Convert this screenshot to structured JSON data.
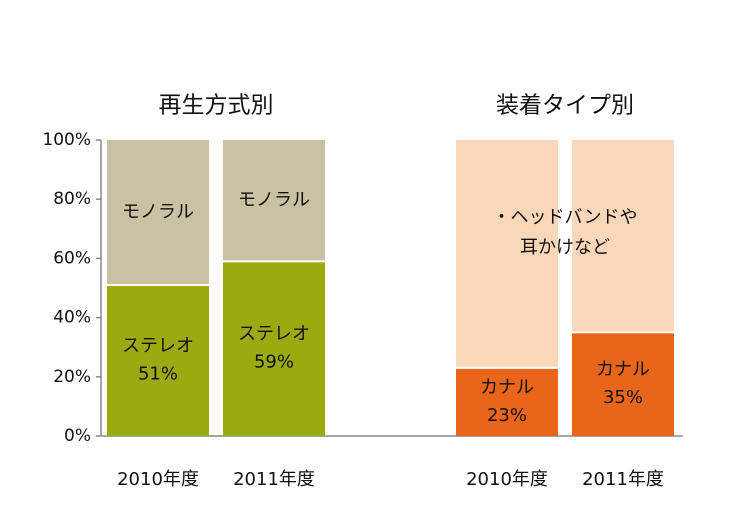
{
  "chart_data": {
    "type": "bar",
    "stacked": true,
    "ylim": [
      0,
      100
    ],
    "yticks": [
      "0%",
      "20%",
      "40%",
      "60%",
      "80%",
      "100%"
    ],
    "ytick_values": [
      0,
      20,
      40,
      60,
      80,
      100
    ],
    "grid": false,
    "groups": [
      {
        "title": "再生方式別",
        "categories": [
          "2010年度",
          "2011年度"
        ],
        "series": [
          {
            "name": "ステレオ",
            "values": [
              51,
              59
            ],
            "color": "#9aaa10",
            "labels": [
              [
                "ステレオ",
                "51%"
              ],
              [
                "ステレオ",
                "59%"
              ]
            ]
          },
          {
            "name": "モノラル",
            "values": [
              49,
              41
            ],
            "color": "#c8c2a2",
            "labels": [
              [
                "モノラル"
              ],
              [
                "モノラル"
              ]
            ]
          }
        ]
      },
      {
        "title": "装着タイプ別",
        "categories": [
          "2010年度",
          "2011年度"
        ],
        "series": [
          {
            "name": "カナル",
            "values": [
              23,
              35
            ],
            "color": "#e8651a",
            "labels": [
              [
                "カナル",
                "23%"
              ],
              [
                "カナル",
                "35%"
              ]
            ]
          },
          {
            "name": "・ヘッドバンドや耳かけなど",
            "values": [
              77,
              65
            ],
            "color": "#fbd7b9",
            "spanning_label": [
              "・ヘッドバンドや",
              "耳かけなど"
            ]
          }
        ]
      }
    ],
    "colors": {
      "axis": "#888888",
      "text": "#111111",
      "segment_text_light": "#ffffff"
    }
  }
}
